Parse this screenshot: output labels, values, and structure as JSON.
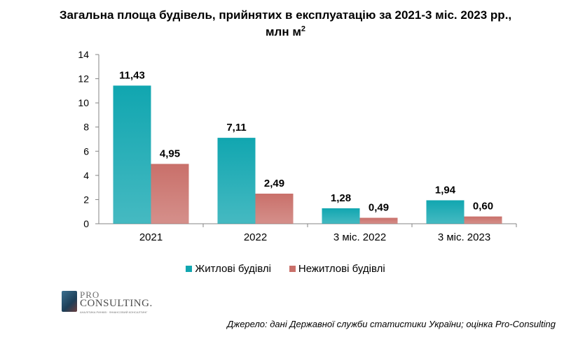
{
  "chart_data": {
    "type": "bar",
    "title_line1": "Загальна площа будівель, прийнятих в експлуатацію за 2021-3 міс. 2023 рр.,",
    "title_line2": "млн м",
    "title_superscript": "2",
    "categories": [
      "2021",
      "2022",
      "3 міс. 2022",
      "3 міс. 2023"
    ],
    "series": [
      {
        "name": "Житлові  будівлі",
        "values": [
          11.43,
          7.11,
          1.28,
          1.94
        ],
        "labels": [
          "11,43",
          "7,11",
          "1,28",
          "1,94"
        ],
        "color": "#11a6b0"
      },
      {
        "name": "Нежитлові  будівлі",
        "values": [
          4.95,
          2.49,
          0.49,
          0.6
        ],
        "labels": [
          "4,95",
          "2,49",
          "0,49",
          "0,60"
        ],
        "color": "#c9706a"
      }
    ],
    "ylim": [
      0,
      14
    ],
    "yticks": [
      "0",
      "2",
      "4",
      "6",
      "8",
      "10",
      "12",
      "14"
    ],
    "ytick_values": [
      0,
      2,
      4,
      6,
      8,
      10,
      12,
      14
    ],
    "grid": false,
    "legend_position": "bottom"
  },
  "logo": {
    "pro": "PRO",
    "consulting": "CONSULTING.",
    "tagline": "АНАЛІТИКА РИНКІВ · ФІНАНСОВИЙ КОНСАЛТИНГ"
  },
  "source_note": "Джерело: дані Державної служби статистики України; оцінка Pro-Consulting"
}
